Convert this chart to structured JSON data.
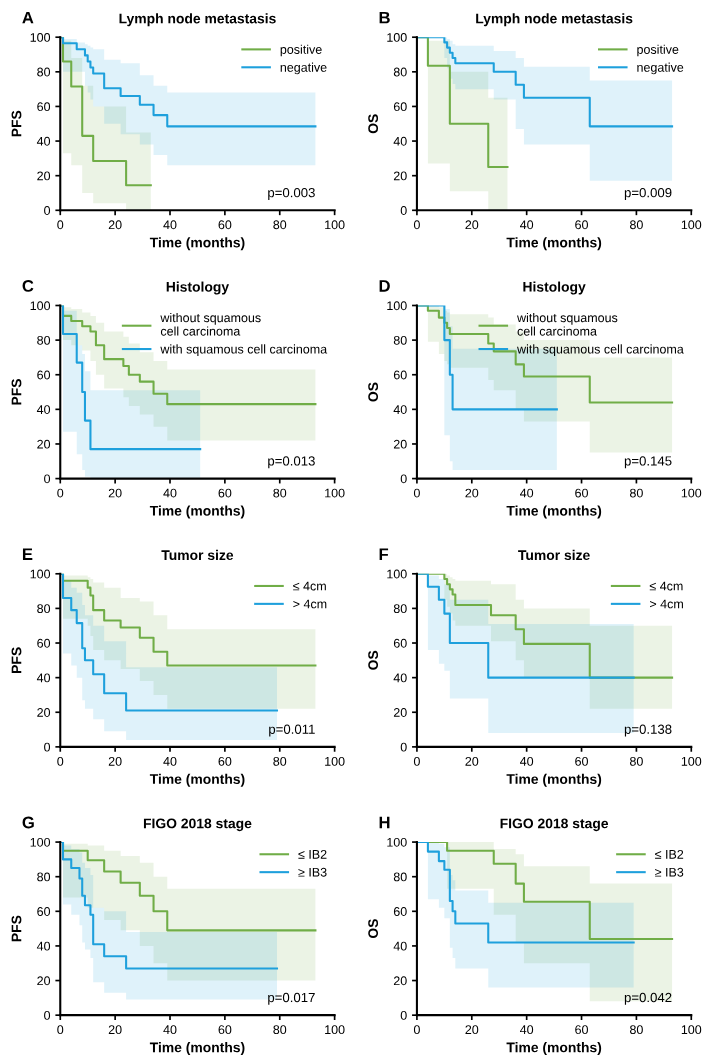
{
  "chart_data": [
    {
      "type": "step",
      "title": "Lymph node metastasis",
      "xlabel": "Time (months)",
      "ylabel": "PFS",
      "xlim": [
        0,
        100
      ],
      "ylim": [
        0,
        100
      ],
      "xticks": [
        0,
        20,
        40,
        60,
        80,
        100
      ],
      "yticks": [
        0,
        20,
        40,
        60,
        80,
        100
      ],
      "grid": false,
      "legend": "top right",
      "annotations": [
        "A",
        "p=0.003"
      ],
      "series": [
        {
          "name": "positive",
          "color": "#70ad47",
          "x": [
            0,
            1,
            4,
            8,
            12,
            24,
            33
          ],
          "values": [
            100,
            86,
            71.5,
            43,
            28.5,
            14.5,
            14.5
          ],
          "lower": [
            100,
            33,
            26,
            10,
            4,
            0,
            0
          ],
          "upper": [
            100,
            98,
            88,
            72,
            60,
            45,
            45
          ]
        },
        {
          "name": "negative",
          "color": "#1ea0dc",
          "x": [
            0,
            1,
            6,
            9,
            10,
            11,
            12,
            16,
            22,
            29,
            34,
            39,
            93
          ],
          "values": [
            100,
            96.5,
            93,
            89.5,
            86,
            82.5,
            79,
            70.5,
            66,
            61,
            55,
            48.5,
            48.5
          ],
          "lower": [
            100,
            80,
            80,
            72,
            68,
            64,
            60,
            50,
            44,
            38,
            32,
            26,
            26
          ],
          "upper": [
            100,
            99,
            97,
            96,
            95,
            94,
            93,
            87,
            85,
            78,
            72,
            68,
            68
          ]
        }
      ]
    },
    {
      "type": "step",
      "title": "Lymph node metastasis",
      "xlabel": "Time (months)",
      "ylabel": "OS",
      "xlim": [
        0,
        100
      ],
      "ylim": [
        0,
        100
      ],
      "xticks": [
        0,
        20,
        40,
        60,
        80,
        100
      ],
      "yticks": [
        0,
        20,
        40,
        60,
        80,
        100
      ],
      "grid": false,
      "legend": "top right",
      "annotations": [
        "B",
        "p=0.009"
      ],
      "series": [
        {
          "name": "positive",
          "color": "#70ad47",
          "x": [
            0,
            4,
            12,
            26,
            33
          ],
          "values": [
            100,
            83.5,
            50,
            25,
            25
          ],
          "lower": [
            100,
            27,
            11,
            0,
            0
          ],
          "upper": [
            100,
            98,
            80,
            65,
            65
          ]
        },
        {
          "name": "negative",
          "color": "#1ea0dc",
          "x": [
            0,
            10,
            11,
            12,
            13,
            14,
            28,
            36,
            39,
            63,
            93
          ],
          "values": [
            100,
            97,
            94,
            91,
            88,
            85,
            80,
            72.5,
            65,
            48.5,
            48.5
          ],
          "lower": [
            100,
            88,
            82,
            76,
            73,
            70,
            64,
            47,
            38,
            17,
            17
          ],
          "upper": [
            100,
            100,
            99,
            98,
            96,
            95,
            92,
            88,
            83,
            75,
            75
          ]
        }
      ]
    },
    {
      "type": "step",
      "title": "Histology",
      "xlabel": "Time (months)",
      "ylabel": "PFS",
      "xlim": [
        0,
        100
      ],
      "ylim": [
        0,
        100
      ],
      "xticks": [
        0,
        20,
        40,
        60,
        80,
        100
      ],
      "yticks": [
        0,
        20,
        40,
        60,
        80,
        100
      ],
      "grid": false,
      "legend": "top right",
      "annotations": [
        "C",
        "p=0.013"
      ],
      "series": [
        {
          "name": "without squamous\ncell carcinoma",
          "color": "#70ad47",
          "x": [
            0,
            1,
            4,
            8,
            11,
            13,
            16,
            23,
            25,
            29,
            34,
            39,
            93
          ],
          "values": [
            100,
            94,
            91,
            88,
            85,
            77,
            69,
            65,
            60,
            56,
            49,
            43,
            43
          ],
          "lower": [
            100,
            80,
            77,
            74,
            68,
            60,
            52,
            47,
            42,
            37,
            30,
            22,
            22
          ],
          "upper": [
            100,
            99,
            98,
            96,
            94,
            90,
            85,
            82,
            78,
            73,
            68,
            63,
            63
          ]
        },
        {
          "name": "with squamous cell carcinoma",
          "color": "#1ea0dc",
          "x": [
            0,
            1,
            6,
            8,
            9,
            11,
            51
          ],
          "values": [
            100,
            83.5,
            67,
            50,
            33.5,
            17,
            17
          ],
          "lower": [
            100,
            27,
            14,
            5,
            1,
            0,
            0
          ],
          "upper": [
            100,
            97,
            77,
            72,
            62,
            51,
            51
          ]
        }
      ]
    },
    {
      "type": "step",
      "title": "Histology",
      "xlabel": "Time (months)",
      "ylabel": "OS",
      "xlim": [
        0,
        100
      ],
      "ylim": [
        0,
        100
      ],
      "xticks": [
        0,
        20,
        40,
        60,
        80,
        100
      ],
      "yticks": [
        0,
        20,
        40,
        60,
        80,
        100
      ],
      "grid": false,
      "legend": "top right",
      "annotations": [
        "D",
        "p=0.145"
      ],
      "series": [
        {
          "name": "without squamous\ncell carcinoma",
          "color": "#70ad47",
          "x": [
            0,
            4,
            8,
            10,
            11,
            12,
            26,
            28,
            36,
            39,
            63,
            93
          ],
          "values": [
            100,
            97,
            93,
            90,
            87,
            83.5,
            78,
            73.5,
            66,
            59,
            44,
            44
          ],
          "lower": [
            100,
            79,
            72,
            68,
            66,
            64,
            57,
            51,
            40,
            33,
            15,
            15
          ],
          "upper": [
            100,
            100,
            99,
            97,
            96,
            95,
            93,
            89,
            85,
            80,
            70,
            70
          ]
        },
        {
          "name": "with squamous cell carcinoma",
          "color": "#1ea0dc",
          "x": [
            0,
            10,
            12,
            13,
            51
          ],
          "values": [
            100,
            80,
            60,
            40,
            40
          ],
          "lower": [
            100,
            25,
            10,
            5,
            5
          ],
          "upper": [
            100,
            98,
            88,
            75,
            75
          ]
        }
      ]
    },
    {
      "type": "step",
      "title": "Tumor size",
      "xlabel": "Time (months)",
      "ylabel": "PFS",
      "xlim": [
        0,
        100
      ],
      "ylim": [
        0,
        100
      ],
      "xticks": [
        0,
        20,
        40,
        60,
        80,
        100
      ],
      "yticks": [
        0,
        20,
        40,
        60,
        80,
        100
      ],
      "grid": false,
      "legend": "top right",
      "annotations": [
        "E",
        "p=0.011"
      ],
      "series": [
        {
          "name": "≤ 4cm",
          "color": "#70ad47",
          "x": [
            0,
            1,
            10,
            11,
            12,
            16,
            22,
            29,
            34,
            39,
            93
          ],
          "values": [
            100,
            96,
            92,
            87.5,
            79,
            73,
            69,
            63,
            55,
            47,
            47
          ],
          "lower": [
            100,
            74,
            70,
            64,
            56,
            50,
            45,
            38,
            30,
            22,
            22
          ],
          "upper": [
            100,
            99,
            98,
            97,
            95,
            92,
            86,
            84,
            76,
            68,
            68
          ]
        },
        {
          "name": "> 4cm",
          "color": "#1ea0dc",
          "x": [
            0,
            1,
            4,
            6,
            8,
            9,
            12,
            16,
            24,
            79
          ],
          "values": [
            100,
            86,
            79,
            71.5,
            57,
            50,
            42,
            31,
            21,
            21
          ],
          "lower": [
            100,
            54,
            47,
            40,
            27,
            22,
            16,
            9,
            4,
            4
          ],
          "upper": [
            100,
            96,
            92,
            89,
            82,
            76,
            70,
            61,
            46,
            46
          ]
        }
      ]
    },
    {
      "type": "step",
      "title": "Tumor size",
      "xlabel": "Time (months)",
      "ylabel": "OS",
      "xlim": [
        0,
        100
      ],
      "ylim": [
        0,
        100
      ],
      "xticks": [
        0,
        20,
        40,
        60,
        80,
        100
      ],
      "yticks": [
        0,
        20,
        40,
        60,
        80,
        100
      ],
      "grid": false,
      "legend": "top right",
      "annotations": [
        "F",
        "p=0.138"
      ],
      "series": [
        {
          "name": "≤ 4cm",
          "color": "#70ad47",
          "x": [
            0,
            10,
            11,
            12,
            13,
            14,
            27,
            36,
            39,
            63,
            93
          ],
          "values": [
            100,
            97,
            94,
            91,
            88,
            82,
            76,
            68,
            59.5,
            40,
            40
          ],
          "lower": [
            100,
            85,
            81,
            77,
            73,
            70,
            61,
            50,
            40,
            22,
            22
          ],
          "upper": [
            100,
            100,
            99,
            98,
            97,
            96,
            94,
            85,
            80,
            70,
            70
          ]
        },
        {
          "name": "> 4cm",
          "color": "#1ea0dc",
          "x": [
            0,
            4,
            8,
            10,
            12,
            26,
            79
          ],
          "values": [
            100,
            92.5,
            85,
            77,
            60,
            40,
            40
          ],
          "lower": [
            100,
            56,
            48,
            44,
            28,
            8,
            8
          ],
          "upper": [
            100,
            99,
            97,
            94,
            85,
            71,
            71
          ]
        }
      ]
    },
    {
      "type": "step",
      "title": "FIGO 2018 stage",
      "xlabel": "Time (months)",
      "ylabel": "PFS",
      "xlim": [
        0,
        100
      ],
      "ylim": [
        0,
        100
      ],
      "xticks": [
        0,
        20,
        40,
        60,
        80,
        100
      ],
      "yticks": [
        0,
        20,
        40,
        60,
        80,
        100
      ],
      "grid": false,
      "legend": "top right",
      "annotations": [
        "G",
        "p=0.017"
      ],
      "series": [
        {
          "name": "≤ IB2",
          "color": "#70ad47",
          "x": [
            0,
            1,
            10,
            16,
            22,
            29,
            34,
            39,
            93
          ],
          "values": [
            100,
            95,
            89.5,
            83,
            76.5,
            69,
            60,
            49,
            49
          ],
          "lower": [
            100,
            68,
            62,
            55,
            49,
            40,
            30,
            20,
            20
          ],
          "upper": [
            100,
            99,
            98,
            95,
            92,
            88,
            80,
            73,
            73
          ]
        },
        {
          "name": "≥ IB3",
          "color": "#1ea0dc",
          "x": [
            0,
            1,
            4,
            7,
            8,
            9,
            11,
            12,
            16,
            24,
            79
          ],
          "values": [
            100,
            90,
            85,
            79,
            69,
            63.5,
            58,
            41,
            34,
            27,
            27
          ],
          "lower": [
            100,
            64,
            58,
            52,
            42,
            38,
            33,
            19,
            13,
            9,
            9
          ],
          "upper": [
            100,
            98,
            96,
            94,
            88,
            85,
            81,
            62,
            60,
            48,
            48
          ]
        }
      ]
    },
    {
      "type": "step",
      "title": "FIGO 2018 stage",
      "xlabel": "Time (months)",
      "ylabel": "OS",
      "xlim": [
        0,
        100
      ],
      "ylim": [
        0,
        100
      ],
      "xticks": [
        0,
        20,
        40,
        60,
        80,
        100
      ],
      "yticks": [
        0,
        20,
        40,
        60,
        80,
        100
      ],
      "grid": false,
      "legend": "top right",
      "annotations": [
        "H",
        "p=0.042"
      ],
      "series": [
        {
          "name": "≤ IB2",
          "color": "#70ad47",
          "x": [
            0,
            11,
            28,
            36,
            39,
            63,
            93
          ],
          "values": [
            100,
            95,
            87.5,
            76,
            65.5,
            44,
            44
          ],
          "lower": [
            100,
            73,
            58,
            42,
            30,
            8,
            8
          ],
          "upper": [
            100,
            100,
            96,
            93,
            86,
            76,
            76
          ]
        },
        {
          "name": "≥ IB3",
          "color": "#1ea0dc",
          "x": [
            0,
            4,
            8,
            10,
            12,
            13,
            14,
            26,
            79
          ],
          "values": [
            100,
            94.5,
            89,
            84,
            66,
            60,
            53,
            42,
            42
          ],
          "lower": [
            100,
            67,
            62,
            56,
            39,
            33,
            27,
            16,
            16
          ],
          "upper": [
            100,
            100,
            99,
            97,
            81,
            78,
            72,
            65,
            65
          ]
        }
      ]
    }
  ]
}
